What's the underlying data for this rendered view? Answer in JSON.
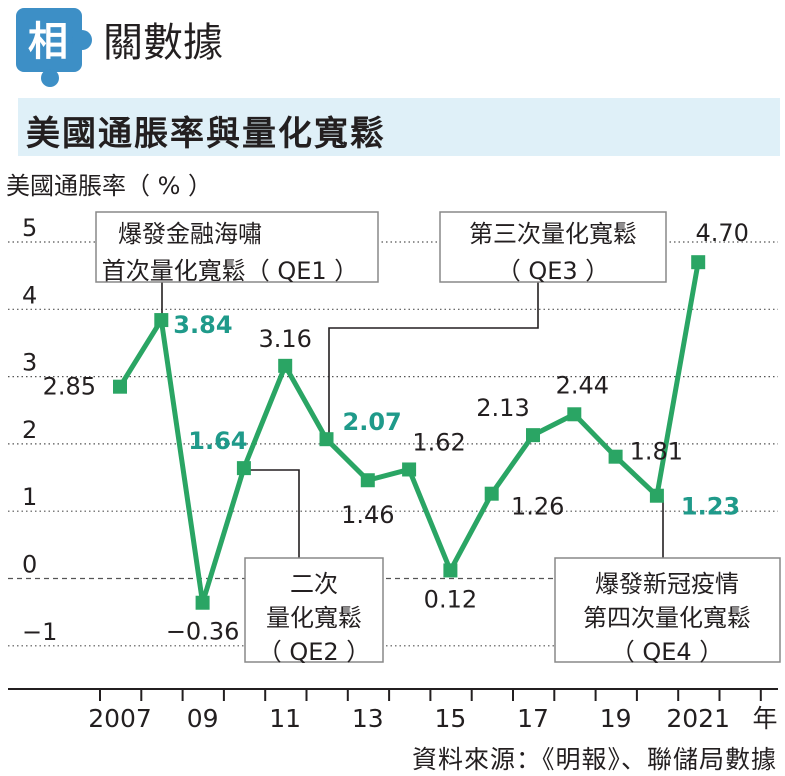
{
  "header": {
    "badge_char": "相",
    "heading": "關數據"
  },
  "title_bar": {
    "title": "美國通脹率與量化寬鬆"
  },
  "colors": {
    "accent": "#2aa564",
    "badge": "#3d8fc6",
    "title_bg": "#dff0f8",
    "highlight_label": "#1f9a8a",
    "text": "#231f20"
  },
  "chart_data": {
    "type": "line",
    "ylabel": "美國通脹率（ % ）",
    "xunit": "年",
    "ylim": [
      -1.5,
      5.5
    ],
    "yticks": [
      "5",
      "4",
      "3",
      "2",
      "1",
      "0",
      "−1"
    ],
    "ytick_values": [
      5,
      4,
      3,
      2,
      1,
      0,
      -1
    ],
    "x": [
      2007,
      2008,
      2009,
      2010,
      2011,
      2012,
      2013,
      2014,
      2015,
      2016,
      2017,
      2018,
      2019,
      2020,
      2021
    ],
    "values": [
      2.85,
      3.84,
      -0.36,
      1.64,
      3.16,
      2.07,
      1.46,
      1.62,
      0.12,
      1.26,
      2.13,
      2.44,
      1.81,
      1.23,
      4.7
    ],
    "value_labels": [
      "2.85",
      "3.84",
      "−0.36",
      "1.64",
      "3.16",
      "2.07",
      "1.46",
      "1.62",
      "0.12",
      "1.26",
      "2.13",
      "2.44",
      "1.81",
      "1.23",
      "4.70"
    ],
    "highlighted": [
      false,
      true,
      false,
      true,
      false,
      true,
      false,
      false,
      false,
      false,
      false,
      false,
      false,
      true,
      false
    ],
    "xtick_labels": [
      {
        "year": 2007,
        "label": "2007"
      },
      {
        "year": 2009,
        "label": "09"
      },
      {
        "year": 2011,
        "label": "11"
      },
      {
        "year": 2013,
        "label": "13"
      },
      {
        "year": 2015,
        "label": "15"
      },
      {
        "year": 2017,
        "label": "17"
      },
      {
        "year": 2019,
        "label": "19"
      },
      {
        "year": 2021,
        "label": "2021"
      }
    ],
    "gridlines": "dotted",
    "annotations": [
      {
        "lines": [
          "爆發金融海嘯",
          "首次量化寬鬆（ QE1 ）"
        ],
        "year": 2008
      },
      {
        "lines": [
          "第三次量化寬鬆",
          "（ QE3 ）"
        ],
        "year": 2012
      },
      {
        "lines": [
          "二次",
          "量化寬鬆",
          "（ QE2 ）"
        ],
        "year": 2010
      },
      {
        "lines": [
          "爆發新冠疫情",
          "第四次量化寬鬆",
          "（ QE4 ）"
        ],
        "year": 2020
      }
    ]
  },
  "source": "資料來源：《明報》、聯儲局數據"
}
